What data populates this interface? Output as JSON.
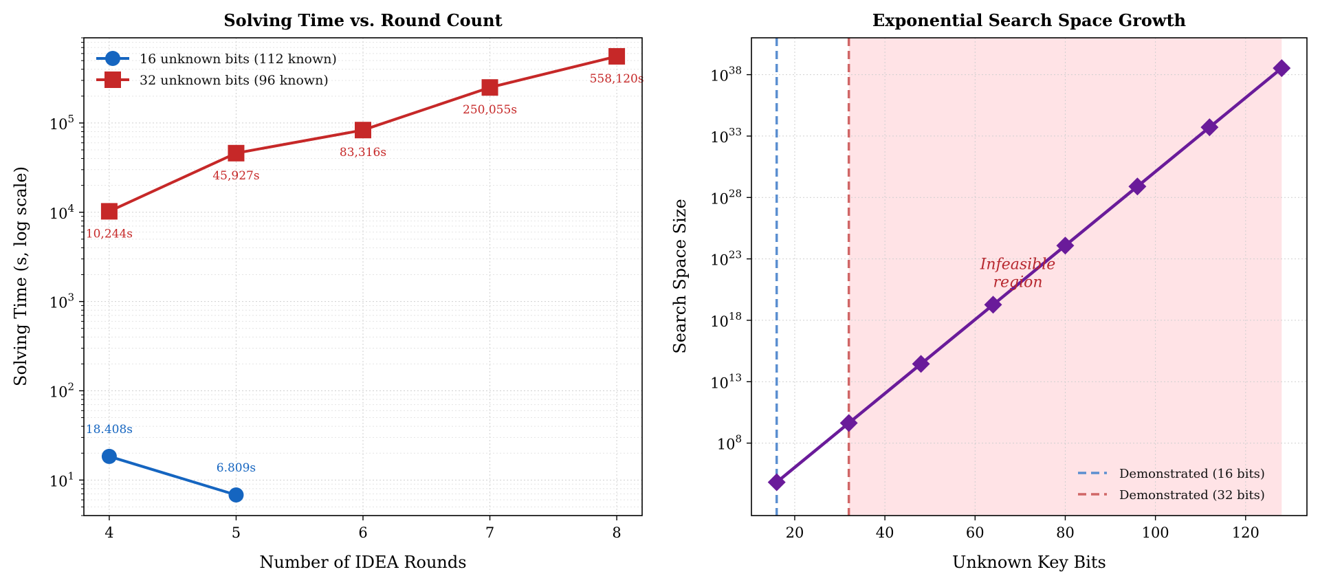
{
  "chart_data": [
    {
      "type": "line",
      "title": "Solving Time vs. Round Count",
      "xlabel": "Number of IDEA Rounds",
      "ylabel": "Solving Time (s, log scale)",
      "xscale": "linear",
      "yscale": "log",
      "xlim": [
        3.8,
        8.2
      ],
      "ylim": [
        4,
        900000
      ],
      "xticks": [
        4,
        5,
        6,
        7,
        8
      ],
      "yticks": [
        {
          "value": 10,
          "base": "10",
          "exp": "1"
        },
        {
          "value": 100,
          "base": "10",
          "exp": "2"
        },
        {
          "value": 1000,
          "base": "10",
          "exp": "3"
        },
        {
          "value": 10000,
          "base": "10",
          "exp": "4"
        },
        {
          "value": 100000,
          "base": "10",
          "exp": "5"
        }
      ],
      "grid": true,
      "legend_position": "top-left",
      "series": [
        {
          "name": "16 unknown bits (112 known)",
          "color": "#1565c0",
          "marker": "circle",
          "x": [
            4,
            5
          ],
          "y": [
            18.408,
            6.809
          ],
          "labels": [
            "18.408s",
            "6.809s"
          ]
        },
        {
          "name": "32 unknown bits (96 known)",
          "color": "#c62828",
          "marker": "square",
          "x": [
            4,
            5,
            6,
            7,
            8
          ],
          "y": [
            10244,
            45927,
            83316,
            250055,
            558120
          ],
          "labels": [
            "10,244s",
            "45,927s",
            "83,316s",
            "250,055s",
            "558,120s"
          ]
        }
      ]
    },
    {
      "type": "line",
      "title": "Exponential Search Space Growth",
      "xlabel": "Unknown Key Bits",
      "ylabel": "Search Space Size",
      "xscale": "linear",
      "yscale": "log",
      "xlim": [
        10.4,
        133.6
      ],
      "ylim_log10": [
        2.1,
        41.0
      ],
      "xticks": [
        20,
        40,
        60,
        80,
        100,
        120
      ],
      "yticks": [
        {
          "log10": 8,
          "base": "10",
          "exp": "8"
        },
        {
          "log10": 13,
          "base": "10",
          "exp": "13"
        },
        {
          "log10": 18,
          "base": "10",
          "exp": "18"
        },
        {
          "log10": 23,
          "base": "10",
          "exp": "23"
        },
        {
          "log10": 28,
          "base": "10",
          "exp": "28"
        },
        {
          "log10": 33,
          "base": "10",
          "exp": "33"
        },
        {
          "log10": 38,
          "base": "10",
          "exp": "38"
        }
      ],
      "grid": true,
      "legend_position": "bottom-right",
      "series": [
        {
          "color": "#6a1b9a",
          "marker": "diamond",
          "x": [
            16,
            32,
            48,
            64,
            80,
            96,
            112,
            128
          ],
          "y_log10": [
            4.816,
            9.633,
            14.449,
            19.266,
            24.082,
            28.899,
            33.715,
            38.532
          ]
        }
      ],
      "reference_lines": [
        {
          "name": "Demonstrated (16 bits)",
          "x": 16,
          "color": "#5b8fd0",
          "style": "dashed"
        },
        {
          "name": "Demonstrated (32 bits)",
          "x": 32,
          "color": "#d06666",
          "style": "dashed"
        }
      ],
      "shaded_region": {
        "x_from": 32,
        "x_to": 128,
        "color": "#ffe3e6"
      },
      "annotation": {
        "lines": [
          "Infeasible",
          "region"
        ],
        "x": 64,
        "log10": 21.5,
        "color": "#b7282f"
      }
    }
  ]
}
